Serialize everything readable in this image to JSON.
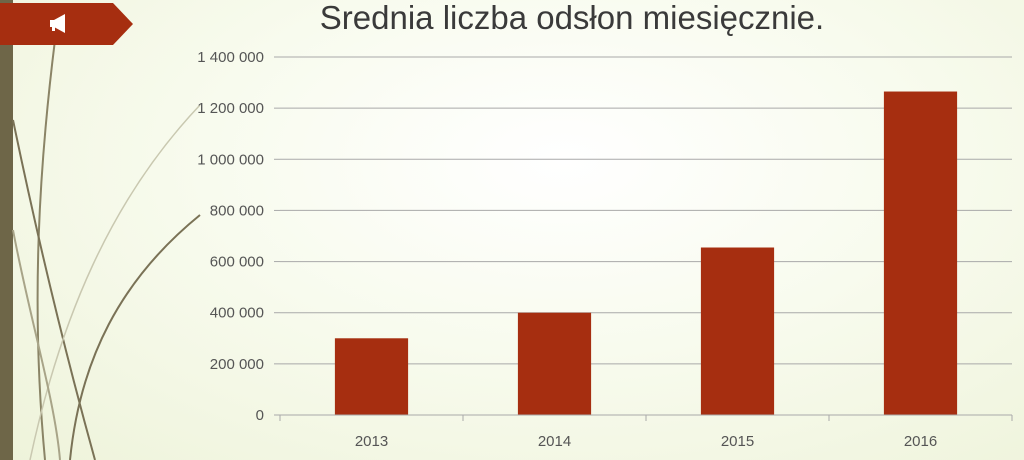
{
  "colors": {
    "bar": "#a62e10",
    "accent": "#a62e10",
    "sidebar": "#6e6648"
  },
  "icons": {
    "header": "megaphone-icon"
  },
  "chart_data": {
    "type": "bar",
    "title": "Srednia liczba odsłon miesięcznie.",
    "categories": [
      "2013",
      "2014",
      "2015",
      "2016"
    ],
    "values": [
      300000,
      400000,
      655000,
      1265000
    ],
    "ylim": [
      0,
      1400000
    ],
    "yticks": [
      0,
      200000,
      400000,
      600000,
      800000,
      1000000,
      1200000,
      1400000
    ],
    "ytick_labels": [
      "0",
      "200 000",
      "400 000",
      "600 000",
      "800 000",
      "1 000 000",
      "1 200 000",
      "1 400 000"
    ],
    "grid": true,
    "legend": "none"
  }
}
